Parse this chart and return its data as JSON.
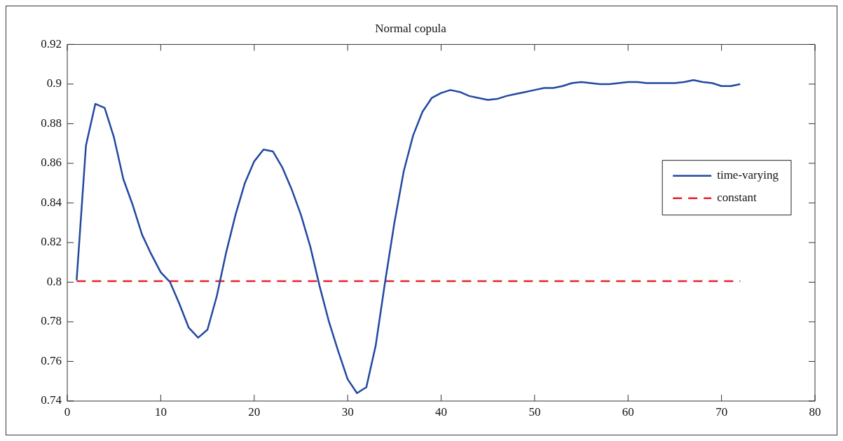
{
  "chart_data": {
    "type": "line",
    "title": "Normal copula",
    "x": [
      1,
      2,
      3,
      4,
      5,
      6,
      7,
      8,
      9,
      10,
      11,
      12,
      13,
      14,
      15,
      16,
      17,
      18,
      19,
      20,
      21,
      22,
      23,
      24,
      25,
      26,
      27,
      28,
      29,
      30,
      31,
      32,
      33,
      34,
      35,
      36,
      37,
      38,
      39,
      40,
      41,
      42,
      43,
      44,
      45,
      46,
      47,
      48,
      49,
      50,
      51,
      52,
      53,
      54,
      55,
      56,
      57,
      58,
      59,
      60,
      61,
      62,
      63,
      64,
      65,
      66,
      67,
      68,
      69,
      70,
      71,
      72
    ],
    "series": [
      {
        "name": "time-varying",
        "color": "#2149a0",
        "line_style": "solid",
        "values": [
          0.801,
          0.869,
          0.89,
          0.888,
          0.873,
          0.852,
          0.839,
          0.824,
          0.814,
          0.805,
          0.8,
          0.789,
          0.777,
          0.772,
          0.776,
          0.793,
          0.815,
          0.834,
          0.85,
          0.861,
          0.867,
          0.866,
          0.858,
          0.847,
          0.834,
          0.818,
          0.798,
          0.78,
          0.765,
          0.751,
          0.744,
          0.747,
          0.768,
          0.8,
          0.83,
          0.856,
          0.874,
          0.886,
          0.893,
          0.8955,
          0.897,
          0.896,
          0.894,
          0.893,
          0.892,
          0.8925,
          0.894,
          0.895,
          0.896,
          0.897,
          0.898,
          0.898,
          0.899,
          0.9005,
          0.901,
          0.9005,
          0.9,
          0.9,
          0.9005,
          0.901,
          0.901,
          0.9005,
          0.9005,
          0.9005,
          0.9005,
          0.901,
          0.902,
          0.901,
          0.9005,
          0.899,
          0.899,
          0.9
        ]
      },
      {
        "name": "constant",
        "color": "#e8202a",
        "line_style": "dashed",
        "x": [
          1,
          72
        ],
        "values": [
          0.8005,
          0.8005
        ]
      }
    ],
    "xlim": [
      0,
      80
    ],
    "xticks": [
      0,
      10,
      20,
      30,
      40,
      50,
      60,
      70,
      80
    ],
    "ylim": [
      0.74,
      0.92
    ],
    "yticks": [
      0.74,
      0.76,
      0.78,
      0.8,
      0.82,
      0.84,
      0.86,
      0.88,
      0.9,
      0.92
    ],
    "grid": false,
    "legend": "right",
    "marker": "none"
  }
}
